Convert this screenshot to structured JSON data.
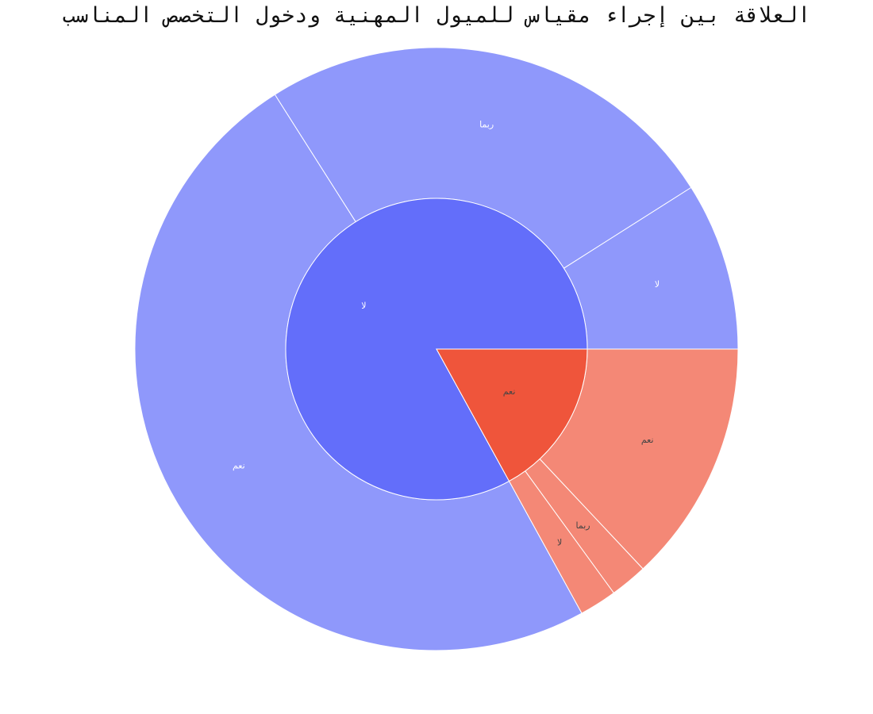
{
  "chart_data": {
    "type": "pie",
    "subtype": "sunburst",
    "title": "العلاقة بين إجراء مقياس للميول المهنية ودخول التخصص المناسب",
    "inner_ring": [
      {
        "label": "لا",
        "value": 83,
        "color": "#636efa",
        "text_color": "#ffffff"
      },
      {
        "label": "نعم",
        "value": 17,
        "color": "#ef553b",
        "text_color": "#444444"
      }
    ],
    "outer_ring": [
      {
        "parent": "لا",
        "label": "نعم",
        "value": 49,
        "color": "#8f98fb",
        "text_color": "#ffffff"
      },
      {
        "parent": "لا",
        "label": "ربما",
        "value": 25,
        "color": "#8f98fb",
        "text_color": "#ffffff"
      },
      {
        "parent": "لا",
        "label": "لا",
        "value": 9,
        "color": "#8f98fb",
        "text_color": "#ffffff"
      },
      {
        "parent": "نعم",
        "label": "نعم",
        "value": 13,
        "color": "#f48876",
        "text_color": "#444444"
      },
      {
        "parent": "نعم",
        "label": "ربما",
        "value": 2,
        "color": "#f48876",
        "text_color": "#444444"
      },
      {
        "parent": "نعم",
        "label": "لا",
        "value": 2,
        "color": "#f48876",
        "text_color": "#444444"
      }
    ]
  }
}
